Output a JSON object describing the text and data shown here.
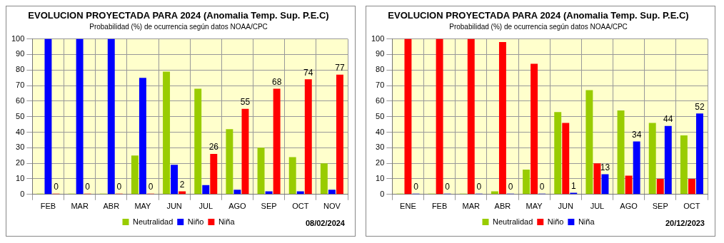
{
  "chart_data": [
    {
      "type": "bar",
      "title": "EVOLUCION PROYECTADA PARA 2024 (Anomalia Temp. Sup. P.E.C)",
      "subtitle": "Probabilidad (%) de ocurrencia según datos NOAA/CPC",
      "categories": [
        "FEB",
        "MAR",
        "ABR",
        "MAY",
        "JUN",
        "JUL",
        "AGO",
        "SEP",
        "OCT",
        "NOV"
      ],
      "series": [
        {
          "name": "Neutralidad",
          "color": "#99cc00",
          "values": [
            0,
            0,
            0,
            25,
            79,
            68,
            42,
            30,
            24,
            20
          ]
        },
        {
          "name": "Niño",
          "color": "#0000ff",
          "values": [
            100,
            100,
            100,
            75,
            19,
            6,
            3,
            2,
            2,
            3
          ]
        },
        {
          "name": "Niña",
          "color": "#ff0000",
          "values": [
            0,
            0,
            0,
            0,
            2,
            26,
            55,
            68,
            74,
            77
          ],
          "value_labels": [
            "0",
            "0",
            "0",
            "0",
            "2",
            "26",
            "55",
            "68",
            "74",
            "77"
          ]
        }
      ],
      "ylim": [
        0,
        100
      ],
      "yticks": [
        0,
        10,
        20,
        30,
        40,
        50,
        60,
        70,
        80,
        90,
        100
      ],
      "grid": true,
      "legend": "bottom",
      "annotations": [
        "08/02/2024"
      ]
    },
    {
      "type": "bar",
      "title": "EVOLUCION PROYECTADA PARA 2024 (Anomalia Temp. Sup. P.E.C)",
      "subtitle": "Probabilidad (%) de ocurrencia según datos NOAA/CPC",
      "categories": [
        "ENE",
        "FEB",
        "MAR",
        "ABR",
        "MAY",
        "JUN",
        "JUL",
        "AGO",
        "SEP",
        "OCT"
      ],
      "series": [
        {
          "name": "Neutralidad",
          "color": "#99cc00",
          "values": [
            0,
            0,
            0,
            2,
            16,
            53,
            67,
            54,
            46,
            38
          ]
        },
        {
          "name": "Niño",
          "color": "#ff0000",
          "values": [
            100,
            100,
            100,
            98,
            84,
            46,
            20,
            12,
            10,
            10
          ]
        },
        {
          "name": "Niña",
          "color": "#0000ff",
          "values": [
            0,
            0,
            0,
            0,
            0,
            1,
            13,
            34,
            44,
            52
          ],
          "value_labels": [
            "0",
            "0",
            "0",
            "0",
            "0",
            "1",
            "13",
            "34",
            "44",
            "52"
          ]
        }
      ],
      "ylim": [
        0,
        100
      ],
      "yticks": [
        0,
        10,
        20,
        30,
        40,
        50,
        60,
        70,
        80,
        90,
        100
      ],
      "grid": true,
      "legend": "bottom",
      "annotations": [
        "20/12/2023"
      ]
    }
  ]
}
